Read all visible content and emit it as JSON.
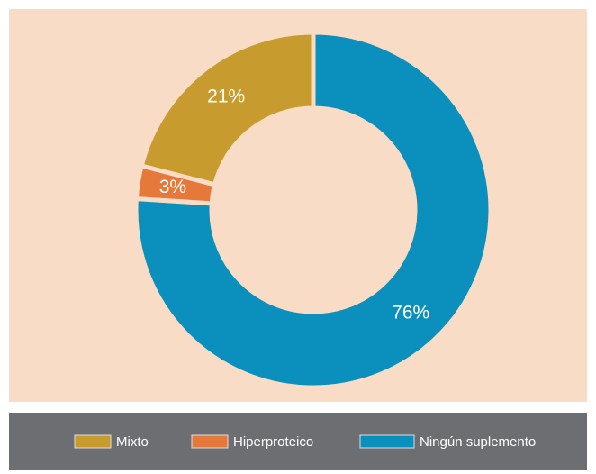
{
  "chart_data": {
    "type": "pie",
    "donut": true,
    "categories": [
      "Mixto",
      "Hiperproteico",
      "Ningún suplemento"
    ],
    "values": [
      21,
      3,
      76
    ],
    "value_labels": [
      "21%",
      "3%",
      "76%"
    ],
    "colors": [
      "#c89b2e",
      "#e5793b",
      "#0b8fbd"
    ]
  }
}
